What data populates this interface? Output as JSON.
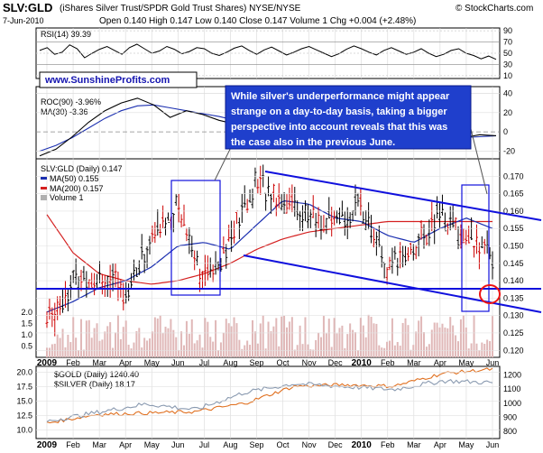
{
  "header": {
    "symbol": "SLV:GLD",
    "name": "(iShares Silver Trust/SPDR Gold Trust Shares) NYSE/NYSE",
    "watermark": "© StockCharts.com",
    "date": "7-Jun-2010",
    "ohlc": "Open 0.140  High 0.147  Low 0.140  Close 0.147  Volume 1  Chg +0.004 (+2.48%)"
  },
  "colors": {
    "price_up": "#000000",
    "price_down": "#cc0000",
    "ma50": "#1b2fb0",
    "ma200": "#d42020",
    "channel": "#1010dd",
    "volume": "#e0b8b8",
    "gold": "#e07020",
    "silver": "#8a9ab0",
    "highlight": "#ee1111",
    "annotation_bg": "#1f3fcc"
  },
  "rsi_panel": {
    "label": "RSI(14) 39.39",
    "ticks": [
      "90",
      "70",
      "50",
      "30",
      "10"
    ],
    "values": [
      55,
      60,
      48,
      52,
      65,
      58,
      42,
      50,
      57,
      62,
      55,
      48,
      60,
      66,
      58,
      50,
      54,
      62,
      57,
      49,
      53,
      60,
      58,
      50,
      46,
      52,
      59,
      63,
      55,
      48,
      56,
      61,
      54,
      47,
      52,
      58,
      62,
      56,
      50,
      44,
      49,
      57,
      63,
      58,
      52,
      47,
      55,
      60,
      54,
      48,
      52,
      58,
      50,
      44,
      48,
      55,
      58,
      50,
      46,
      40,
      45,
      39
    ]
  },
  "roc_panel": {
    "roc_label": "ROC(90) -3.96%",
    "ma_label": "MA(30) -3.36",
    "ticks": [
      "40",
      "20",
      "0",
      "-20"
    ],
    "website": "www.SunshineProfits.com"
  },
  "annotation": {
    "text_lines": [
      "While silver's underperformance might appear",
      "strange on a day-to-day basis, taking a bigger",
      "perspective into account reveals that this was",
      "the case also in the previous June."
    ]
  },
  "main_panel": {
    "legend": {
      "title": "SLV:GLD (Daily) 0.147",
      "ma50": "MA(50) 0.155",
      "ma200": "MA(200) 0.157",
      "volume": "Volume 1"
    },
    "price_ticks": [
      "0.170",
      "0.165",
      "0.160",
      "0.155",
      "0.150",
      "0.145",
      "0.140",
      "0.135",
      "0.130",
      "0.125",
      "0.120"
    ],
    "volume_ticks": [
      "2.0",
      "1.5",
      "1.0",
      "0.5"
    ]
  },
  "x_axis": {
    "labels": [
      "2009",
      "Feb",
      "Mar",
      "Apr",
      "May",
      "Jun",
      "Jul",
      "Aug",
      "Sep",
      "Oct",
      "Nov",
      "Dec",
      "2010",
      "Feb",
      "Mar",
      "Apr",
      "May",
      "Jun"
    ]
  },
  "bottom_panel": {
    "gold_label": "$GOLD (Daily) 1240.40",
    "silver_label": "$SILVER (Daily) 18.17",
    "left_ticks": [
      "20.0",
      "17.5",
      "15.0",
      "12.5",
      "10.0"
    ],
    "right_ticks": [
      "1200",
      "1100",
      "1000",
      "900",
      "800"
    ]
  },
  "chart_data": {
    "type": "line",
    "title": "SLV:GLD",
    "xlabel": "",
    "ylabel": "",
    "ylim": [
      0.118,
      0.175
    ],
    "x": [
      "2009-01",
      "2009-02",
      "2009-03",
      "2009-04",
      "2009-05",
      "2009-06",
      "2009-07",
      "2009-08",
      "2009-09",
      "2009-10",
      "2009-11",
      "2009-12",
      "2010-01",
      "2010-02",
      "2010-03",
      "2010-04",
      "2010-05",
      "2010-06"
    ],
    "series": [
      {
        "name": "SLV:GLD (Daily)",
        "values": [
          0.128,
          0.14,
          0.142,
          0.137,
          0.152,
          0.162,
          0.14,
          0.152,
          0.168,
          0.164,
          0.158,
          0.156,
          0.162,
          0.142,
          0.15,
          0.159,
          0.152,
          0.147
        ]
      },
      {
        "name": "MA(50)",
        "values": [
          0.131,
          0.134,
          0.138,
          0.14,
          0.144,
          0.15,
          0.151,
          0.149,
          0.156,
          0.163,
          0.162,
          0.158,
          0.157,
          0.153,
          0.151,
          0.155,
          0.158,
          0.155
        ]
      },
      {
        "name": "MA(200)",
        "values": [
          0.159,
          0.148,
          0.142,
          0.14,
          0.139,
          0.14,
          0.142,
          0.145,
          0.149,
          0.152,
          0.154,
          0.155,
          0.156,
          0.157,
          0.157,
          0.157,
          0.157,
          0.157
        ]
      }
    ],
    "gold_silver": {
      "x": [
        "2009-01",
        "2009-03",
        "2009-05",
        "2009-07",
        "2009-09",
        "2009-11",
        "2010-01",
        "2010-03",
        "2010-05",
        "2010-06"
      ],
      "gold": [
        860,
        920,
        930,
        940,
        1000,
        1120,
        1130,
        1120,
        1210,
        1240
      ],
      "silver": [
        11.5,
        13.0,
        14.5,
        13.5,
        16.5,
        18.0,
        17.5,
        17.0,
        18.5,
        18.17
      ]
    }
  }
}
